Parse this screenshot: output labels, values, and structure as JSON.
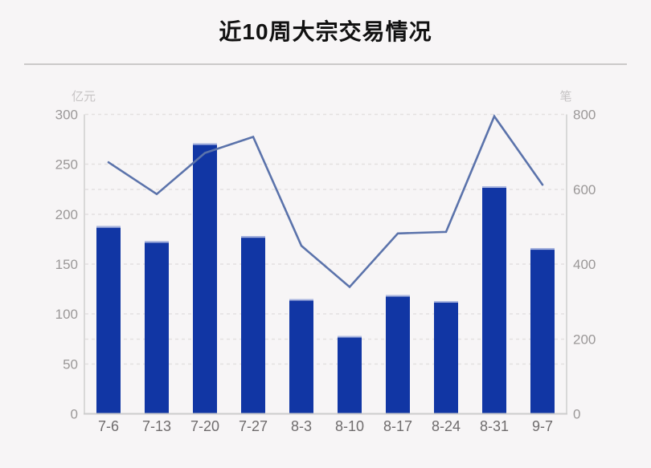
{
  "title": "近10周大宗交易情况",
  "chart_data": {
    "type": "combo-bar-line",
    "title": "近10周大宗交易情况",
    "categories": [
      "7-6",
      "7-13",
      "7-20",
      "7-27",
      "8-3",
      "8-10",
      "8-17",
      "8-24",
      "8-31",
      "9-7"
    ],
    "series": [
      {
        "name": "bar-series",
        "type": "bar",
        "axis": "left",
        "values": [
          188,
          173,
          271,
          178,
          115,
          78,
          119,
          113,
          228,
          166
        ]
      },
      {
        "name": "line-series",
        "type": "line",
        "axis": "right",
        "values": [
          672,
          587,
          697,
          740,
          449,
          339,
          482,
          486,
          795,
          612
        ]
      }
    ],
    "left_axis": {
      "name": "亿元",
      "ticks": [
        0,
        50,
        100,
        150,
        200,
        250,
        300
      ],
      "min": 0,
      "max": 300
    },
    "right_axis": {
      "name": "笔",
      "ticks": [
        0,
        200,
        400,
        600,
        800
      ],
      "min": 0,
      "max": 800
    },
    "grid": "dashed",
    "legend": "none"
  },
  "colors": {
    "background": "#f7f5f6",
    "title_color": "#111111",
    "divider": "#cbc9c9",
    "bar": "#1136a4",
    "bar_top_edge": "#aab6e0",
    "line": "#5b73ab",
    "axis_line": "#cccccc",
    "grid_line": "#e3e0e0",
    "tick_label": "#9b9898",
    "x_label": "#6f6c6d",
    "axis_name": "#c6c3c4"
  }
}
